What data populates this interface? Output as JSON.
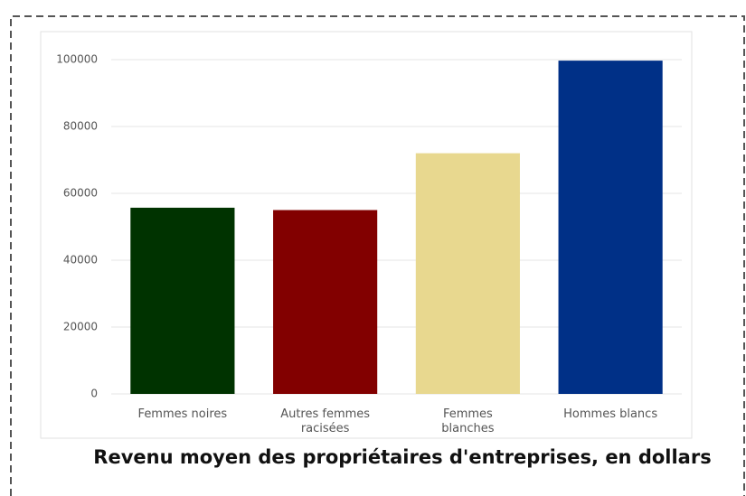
{
  "chart_data": {
    "type": "bar",
    "title": "Revenu moyen des propriétaires d'entreprises, en dollars",
    "categories": [
      "Femmes noires",
      "Autres femmes racisées",
      "Femmes blanches",
      "Hommes blancs"
    ],
    "series": [
      {
        "name": null,
        "colors": [
          "#003300",
          "#820000",
          "#e8d88f",
          "#003087"
        ],
        "values": [
          55700,
          55000,
          72000,
          99700
        ]
      }
    ],
    "ylim": [
      0,
      100000
    ],
    "yticks": [
      0,
      20000,
      40000,
      60000,
      80000,
      100000
    ],
    "grid": true
  }
}
